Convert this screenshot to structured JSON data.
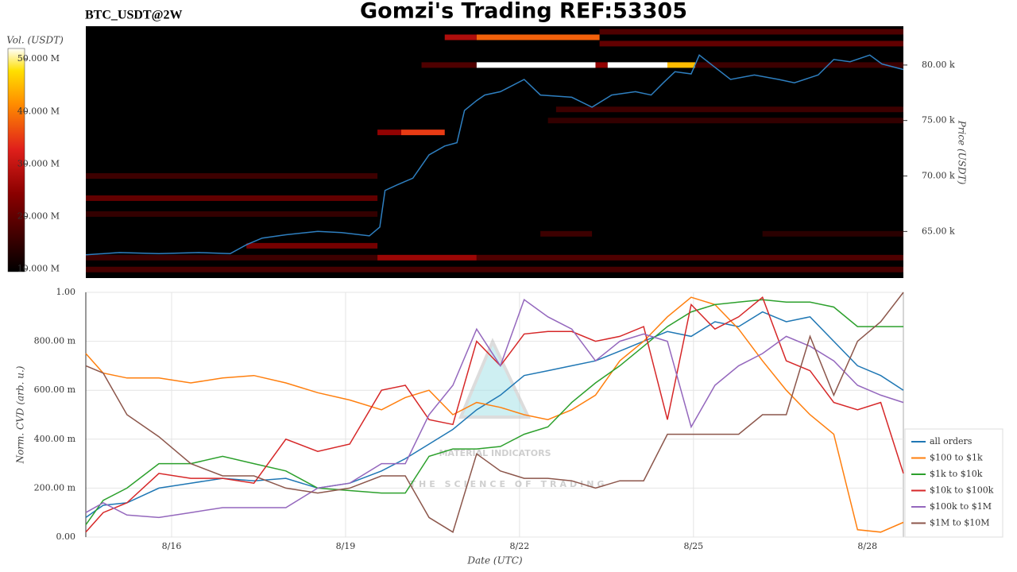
{
  "chart_data": [
    {
      "type": "heatmap",
      "title": "Gomzi's Trading REF:53305",
      "subtitle": "BTC_USDT@2W",
      "y_label": "Price (USDT)",
      "xlim": [
        14.52,
        28.62
      ],
      "ylim": [
        60800,
        83500
      ],
      "yticks": [
        {
          "value": 65000,
          "label": "65.00 k"
        },
        {
          "value": 70000,
          "label": "70.00 k"
        },
        {
          "value": 75000,
          "label": "75.00 k"
        },
        {
          "value": 80000,
          "label": "80.00 k"
        }
      ],
      "colorbar": {
        "label": "Vol. (USDT)",
        "lim": [
          9.5,
          52
        ],
        "ticks": [
          {
            "value": 10,
            "label": "10.000 M"
          },
          {
            "value": 20,
            "label": "20.000 M"
          },
          {
            "value": 30,
            "label": "30.000 M"
          },
          {
            "value": 40,
            "label": "40.000 M"
          },
          {
            "value": 50,
            "label": "50.000 M"
          }
        ]
      },
      "bands": [
        [
          61570,
          14.52,
          28.62,
          17
        ],
        [
          62640,
          14.52,
          19.55,
          16
        ],
        [
          62640,
          19.55,
          21.26,
          26
        ],
        [
          62640,
          21.26,
          28.62,
          18
        ],
        [
          63710,
          17.29,
          19.55,
          22
        ],
        [
          64790,
          22.36,
          23.25,
          16
        ],
        [
          64790,
          26.19,
          28.62,
          14
        ],
        [
          66570,
          14.52,
          19.55,
          15
        ],
        [
          68000,
          14.52,
          19.55,
          20
        ],
        [
          70000,
          14.52,
          19.55,
          16
        ],
        [
          73930,
          19.55,
          19.96,
          25
        ],
        [
          73930,
          19.96,
          20.71,
          35
        ],
        [
          75000,
          22.49,
          28.62,
          15
        ],
        [
          76000,
          22.63,
          28.62,
          16
        ],
        [
          80000,
          20.31,
          21.26,
          18
        ],
        [
          80000,
          21.26,
          23.31,
          52
        ],
        [
          80000,
          23.31,
          23.52,
          25
        ],
        [
          80000,
          23.52,
          24.55,
          52
        ],
        [
          80000,
          24.55,
          25.03,
          45
        ],
        [
          80000,
          25.03,
          28.62,
          16
        ],
        [
          81930,
          23.38,
          28.62,
          20
        ],
        [
          82500,
          20.71,
          21.26,
          28
        ],
        [
          82500,
          21.26,
          23.38,
          38
        ],
        [
          83000,
          23.38,
          28.62,
          18
        ]
      ],
      "price": {
        "color": "#2e7fc0",
        "x": [
          14.52,
          15.1,
          15.78,
          16.47,
          17.01,
          17.29,
          17.56,
          17.97,
          18.52,
          18.93,
          19.41,
          19.59,
          19.68,
          19.89,
          20.16,
          20.44,
          20.71,
          20.92,
          21.05,
          21.26,
          21.4,
          21.67,
          22.08,
          22.36,
          22.9,
          23.25,
          23.59,
          24.0,
          24.27,
          24.48,
          24.68,
          24.96,
          25.1,
          25.37,
          25.64,
          26.05,
          26.47,
          26.74,
          27.15,
          27.42,
          27.7,
          28.04,
          28.25,
          28.62
        ],
        "values": [
          62900,
          63100,
          63000,
          63100,
          63000,
          63800,
          64400,
          64700,
          65000,
          64900,
          64600,
          65400,
          68700,
          69200,
          69800,
          71900,
          72700,
          73000,
          75900,
          76800,
          77300,
          77600,
          78700,
          77300,
          77100,
          76200,
          77300,
          77600,
          77300,
          78400,
          79400,
          79200,
          80900,
          79800,
          78700,
          79100,
          78700,
          78400,
          79100,
          80500,
          80300,
          80900,
          80100,
          79600
        ]
      }
    },
    {
      "type": "line",
      "x_label": "Date (UTC)",
      "y_label": "Norm. CVD (arb. u.)",
      "watermark": [
        "MATERIAL INDICATORS",
        "THE SCIENCE OF TRADING"
      ],
      "xlim": [
        14.52,
        28.62
      ],
      "ylim": [
        0,
        1
      ],
      "xticks": [
        {
          "value": 16,
          "label": "8/16"
        },
        {
          "value": 19,
          "label": "8/19"
        },
        {
          "value": 22,
          "label": "8/22"
        },
        {
          "value": 25,
          "label": "8/25"
        },
        {
          "value": 28,
          "label": "8/28"
        }
      ],
      "yticks": [
        {
          "value": 0,
          "label": "0.00"
        },
        {
          "value": 0.2,
          "label": "200.00 m"
        },
        {
          "value": 0.4,
          "label": "400.00 m"
        },
        {
          "value": 0.6,
          "label": "600.00 m"
        },
        {
          "value": 0.8,
          "label": "800.00 m"
        },
        {
          "value": 1,
          "label": "1.00"
        }
      ],
      "grid": true,
      "legend": "right",
      "x": [
        14.52,
        14.82,
        15.23,
        15.78,
        16.33,
        16.88,
        17.42,
        17.97,
        18.52,
        19.07,
        19.62,
        20.03,
        20.44,
        20.85,
        21.26,
        21.67,
        22.08,
        22.49,
        22.9,
        23.31,
        23.73,
        24.14,
        24.55,
        24.96,
        25.37,
        25.78,
        26.19,
        26.6,
        27.01,
        27.42,
        27.83,
        28.23,
        28.62
      ],
      "series": [
        {
          "name": "all orders",
          "color": "#1f77b4",
          "values": [
            0.08,
            0.13,
            0.14,
            0.2,
            0.22,
            0.24,
            0.23,
            0.24,
            0.2,
            0.22,
            0.27,
            0.32,
            0.38,
            0.44,
            0.52,
            0.58,
            0.66,
            0.68,
            0.7,
            0.72,
            0.76,
            0.8,
            0.84,
            0.82,
            0.88,
            0.86,
            0.92,
            0.88,
            0.9,
            0.8,
            0.7,
            0.66,
            0.6
          ]
        },
        {
          "name": "$100 to $1k",
          "color": "#ff7f0e",
          "values": [
            0.75,
            0.67,
            0.65,
            0.65,
            0.63,
            0.65,
            0.66,
            0.63,
            0.59,
            0.56,
            0.52,
            0.57,
            0.6,
            0.5,
            0.55,
            0.53,
            0.5,
            0.48,
            0.52,
            0.58,
            0.72,
            0.8,
            0.9,
            0.98,
            0.95,
            0.85,
            0.72,
            0.6,
            0.5,
            0.42,
            0.03,
            0.02,
            0.06
          ]
        },
        {
          "name": "$1k to $10k",
          "color": "#2ca02c",
          "values": [
            0.05,
            0.15,
            0.2,
            0.3,
            0.3,
            0.33,
            0.3,
            0.27,
            0.2,
            0.19,
            0.18,
            0.18,
            0.33,
            0.36,
            0.36,
            0.37,
            0.42,
            0.45,
            0.55,
            0.63,
            0.7,
            0.78,
            0.86,
            0.92,
            0.95,
            0.96,
            0.97,
            0.96,
            0.96,
            0.94,
            0.86,
            0.86,
            0.86
          ]
        },
        {
          "name": "$10k to $100k",
          "color": "#d62728",
          "values": [
            0.02,
            0.1,
            0.14,
            0.26,
            0.24,
            0.24,
            0.22,
            0.4,
            0.35,
            0.38,
            0.6,
            0.62,
            0.48,
            0.46,
            0.8,
            0.7,
            0.83,
            0.84,
            0.84,
            0.8,
            0.82,
            0.86,
            0.48,
            0.95,
            0.85,
            0.9,
            0.98,
            0.72,
            0.68,
            0.55,
            0.52,
            0.55,
            0.26
          ]
        },
        {
          "name": "$100k to $1M",
          "color": "#9467bd",
          "values": [
            0.1,
            0.14,
            0.09,
            0.08,
            0.1,
            0.12,
            0.12,
            0.12,
            0.2,
            0.22,
            0.3,
            0.3,
            0.5,
            0.62,
            0.85,
            0.7,
            0.97,
            0.9,
            0.85,
            0.72,
            0.8,
            0.83,
            0.8,
            0.45,
            0.62,
            0.7,
            0.75,
            0.82,
            0.78,
            0.72,
            0.62,
            0.58,
            0.55
          ]
        },
        {
          "name": "$1M to $10M",
          "color": "#8c564b",
          "values": [
            0.7,
            0.67,
            0.5,
            0.41,
            0.3,
            0.25,
            0.25,
            0.2,
            0.18,
            0.2,
            0.25,
            0.25,
            0.08,
            0.02,
            0.34,
            0.27,
            0.24,
            0.24,
            0.23,
            0.2,
            0.23,
            0.23,
            0.42,
            0.42,
            0.42,
            0.42,
            0.5,
            0.5,
            0.82,
            0.58,
            0.8,
            0.88,
            1.0
          ]
        }
      ]
    }
  ]
}
